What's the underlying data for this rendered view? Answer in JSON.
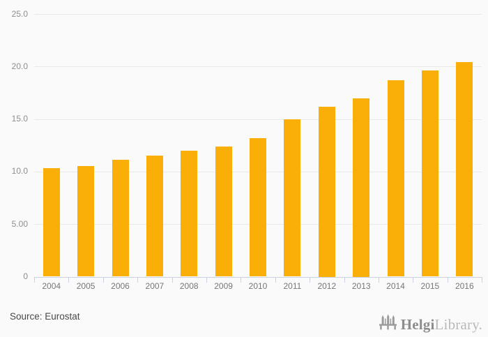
{
  "chart_data": {
    "type": "bar",
    "title": "",
    "xlabel": "",
    "ylabel": "",
    "categories": [
      "2004",
      "2005",
      "2006",
      "2007",
      "2008",
      "2009",
      "2010",
      "2011",
      "2012",
      "2013",
      "2014",
      "2015",
      "2016"
    ],
    "values": [
      10.3,
      10.5,
      11.1,
      11.5,
      12.0,
      12.4,
      13.2,
      15.0,
      16.2,
      17.0,
      18.7,
      19.6,
      20.4
    ],
    "ylim": [
      0,
      25
    ],
    "y_ticks": [
      {
        "value": 25,
        "label": "25.0"
      },
      {
        "value": 20,
        "label": "20.0"
      },
      {
        "value": 15,
        "label": "15.0"
      },
      {
        "value": 10,
        "label": "10.0"
      },
      {
        "value": 5,
        "label": "5.00"
      },
      {
        "value": 0,
        "label": "0"
      }
    ],
    "grid": true,
    "legend": false,
    "bar_color": "#FAAE08"
  },
  "footer": {
    "source_label": "Source: Eurostat",
    "logo": {
      "icon": "bridge-icon",
      "brand_primary": "Helgi",
      "brand_secondary": "Library."
    }
  },
  "colors": {
    "background": "#FAFAFA",
    "bar": "#FAAE08",
    "gridline": "#E9E9E9",
    "axis_line": "#C9D1E3",
    "axis_tick": "#C9D1E3",
    "y_label": "#8E8E8E",
    "x_label": "#767676",
    "source_text": "#484848",
    "logo_primary": "#8D8D8D",
    "logo_secondary": "#B9B9B9",
    "logo_icon": "#9A9A9A"
  }
}
